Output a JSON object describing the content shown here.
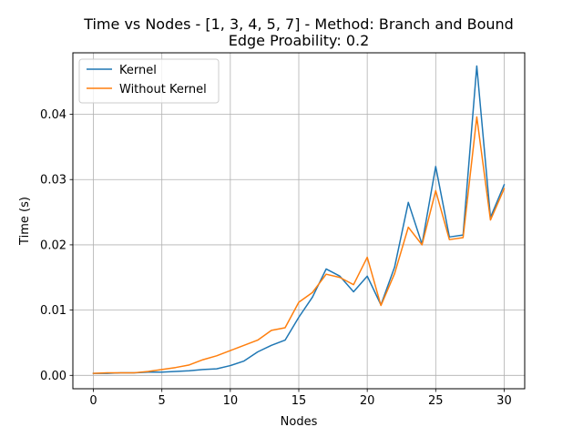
{
  "chart_data": {
    "type": "line",
    "title": "Time vs Nodes - [1, 3, 4, 5, 7] - Method: Branch and Bound",
    "subtitle": "Edge Proability: 0.2",
    "xlabel": "Nodes",
    "ylabel": "Time (s)",
    "xlim": [
      -1.5,
      31.5
    ],
    "ylim": [
      -0.00205,
      0.04942
    ],
    "xticks": [
      0,
      5,
      10,
      15,
      20,
      25,
      30
    ],
    "yticks": [
      0.0,
      0.01,
      0.02,
      0.03,
      0.04
    ],
    "xtick_labels": [
      "0",
      "5",
      "10",
      "15",
      "20",
      "25",
      "30"
    ],
    "ytick_labels": [
      "0.00",
      "0.01",
      "0.02",
      "0.03",
      "0.04"
    ],
    "grid": true,
    "legend_position": "top-left",
    "x": [
      0,
      1,
      2,
      3,
      4,
      5,
      6,
      7,
      8,
      9,
      10,
      11,
      12,
      13,
      14,
      15,
      16,
      17,
      18,
      19,
      20,
      21,
      22,
      23,
      24,
      25,
      26,
      27,
      28,
      29,
      30
    ],
    "series": [
      {
        "name": "Kernel",
        "color": "#1f77b4",
        "values": [
          0.0003,
          0.0003,
          0.0004,
          0.0004,
          0.0005,
          0.0005,
          0.0006,
          0.0007,
          0.0009,
          0.001,
          0.0015,
          0.0022,
          0.0036,
          0.0046,
          0.0054,
          0.0089,
          0.012,
          0.0163,
          0.0152,
          0.0128,
          0.0152,
          0.0108,
          0.0166,
          0.0265,
          0.0201,
          0.032,
          0.0212,
          0.0215,
          0.0474,
          0.0242,
          0.0292
        ]
      },
      {
        "name": "Without Kernel",
        "color": "#ff7f0e",
        "values": [
          0.0003,
          0.0004,
          0.0004,
          0.0004,
          0.0006,
          0.0009,
          0.0012,
          0.0016,
          0.0024,
          0.003,
          0.0038,
          0.0046,
          0.0054,
          0.0069,
          0.0073,
          0.0112,
          0.0127,
          0.0155,
          0.015,
          0.0139,
          0.0181,
          0.0107,
          0.0156,
          0.0227,
          0.02,
          0.0283,
          0.0208,
          0.0211,
          0.0396,
          0.0238,
          0.0286
        ]
      }
    ]
  }
}
